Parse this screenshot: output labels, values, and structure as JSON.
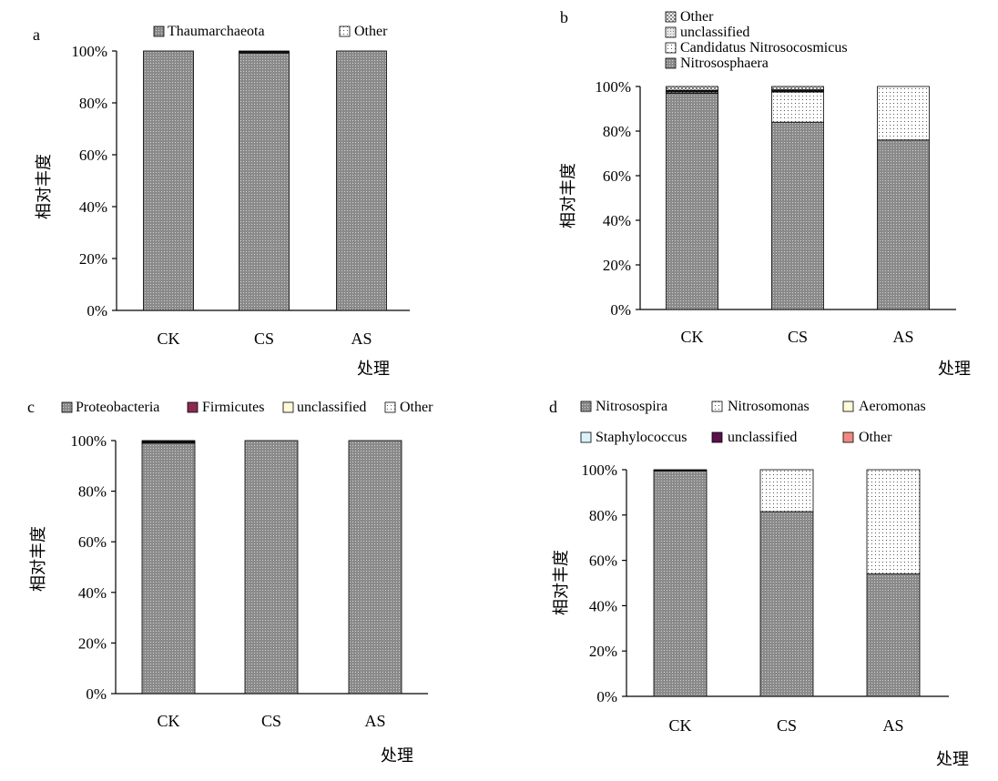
{
  "colors": {
    "firmicutes": "#8b2a52",
    "unclassified_cream": "#fffbd6",
    "aeromonas": "#fffbd6",
    "staphylococcus": "#d9f3fb",
    "unclassified_purple": "#5a0f4a",
    "other_salmon": "#f08a80",
    "bar_dark": "#8a8a8a",
    "bar_black": "#111111"
  },
  "chart_data": [
    {
      "panel": "a",
      "type": "bar",
      "stacked": true,
      "categories": [
        "CK",
        "CS",
        "AS"
      ],
      "xlabel": "处理",
      "ylabel": "相对丰度",
      "ylim": [
        0,
        100
      ],
      "yticks": [
        "0%",
        "20%",
        "40%",
        "60%",
        "80%",
        "100%"
      ],
      "series": [
        {
          "name": "Thaumarchaeota",
          "values": [
            100,
            99.2,
            100
          ]
        },
        {
          "name": "Other",
          "values": [
            0,
            0.8,
            0
          ]
        }
      ]
    },
    {
      "panel": "b",
      "type": "bar",
      "stacked": true,
      "categories": [
        "CK",
        "CS",
        "AS"
      ],
      "xlabel": "处理",
      "ylabel": "相对丰度",
      "ylim": [
        0,
        100
      ],
      "yticks": [
        "0%",
        "20%",
        "40%",
        "60%",
        "80%",
        "100%"
      ],
      "series": [
        {
          "name": "Nitrososphaera",
          "values": [
            97,
            84,
            76
          ]
        },
        {
          "name": "Candidatus Nitrosocosmicus",
          "values": [
            0.5,
            13.5,
            24
          ]
        },
        {
          "name": "unclassified",
          "values": [
            0.8,
            1,
            0
          ]
        },
        {
          "name": "Other",
          "values": [
            1.7,
            1.5,
            0
          ]
        }
      ]
    },
    {
      "panel": "c",
      "type": "bar",
      "stacked": true,
      "categories": [
        "CK",
        "CS",
        "AS"
      ],
      "xlabel": "处理",
      "ylabel": "相对丰度",
      "ylim": [
        0,
        100
      ],
      "yticks": [
        "0%",
        "20%",
        "40%",
        "60%",
        "80%",
        "100%"
      ],
      "series": [
        {
          "name": "Proteobacteria",
          "values": [
            99,
            100,
            100
          ]
        },
        {
          "name": "Firmicutes",
          "values": [
            0,
            0,
            0
          ]
        },
        {
          "name": "unclassified",
          "values": [
            1,
            0,
            0
          ]
        },
        {
          "name": "Other",
          "values": [
            0,
            0,
            0
          ]
        }
      ]
    },
    {
      "panel": "d",
      "type": "bar",
      "stacked": true,
      "categories": [
        "CK",
        "CS",
        "AS"
      ],
      "xlabel": "处理",
      "ylabel": "相对丰度",
      "ylim": [
        0,
        100
      ],
      "yticks": [
        "0%",
        "20%",
        "40%",
        "60%",
        "80%",
        "100%"
      ],
      "series": [
        {
          "name": "Nitrosospira",
          "values": [
            99.5,
            81.5,
            54
          ]
        },
        {
          "name": "Nitrosomonas",
          "values": [
            0,
            18.5,
            46
          ]
        },
        {
          "name": "Aeromonas",
          "values": [
            0,
            0,
            0
          ]
        },
        {
          "name": "Staphylococcus",
          "values": [
            0,
            0,
            0
          ]
        },
        {
          "name": "unclassified",
          "values": [
            0.5,
            0,
            0
          ]
        },
        {
          "name": "Other",
          "values": [
            0,
            0,
            0
          ]
        }
      ]
    }
  ]
}
